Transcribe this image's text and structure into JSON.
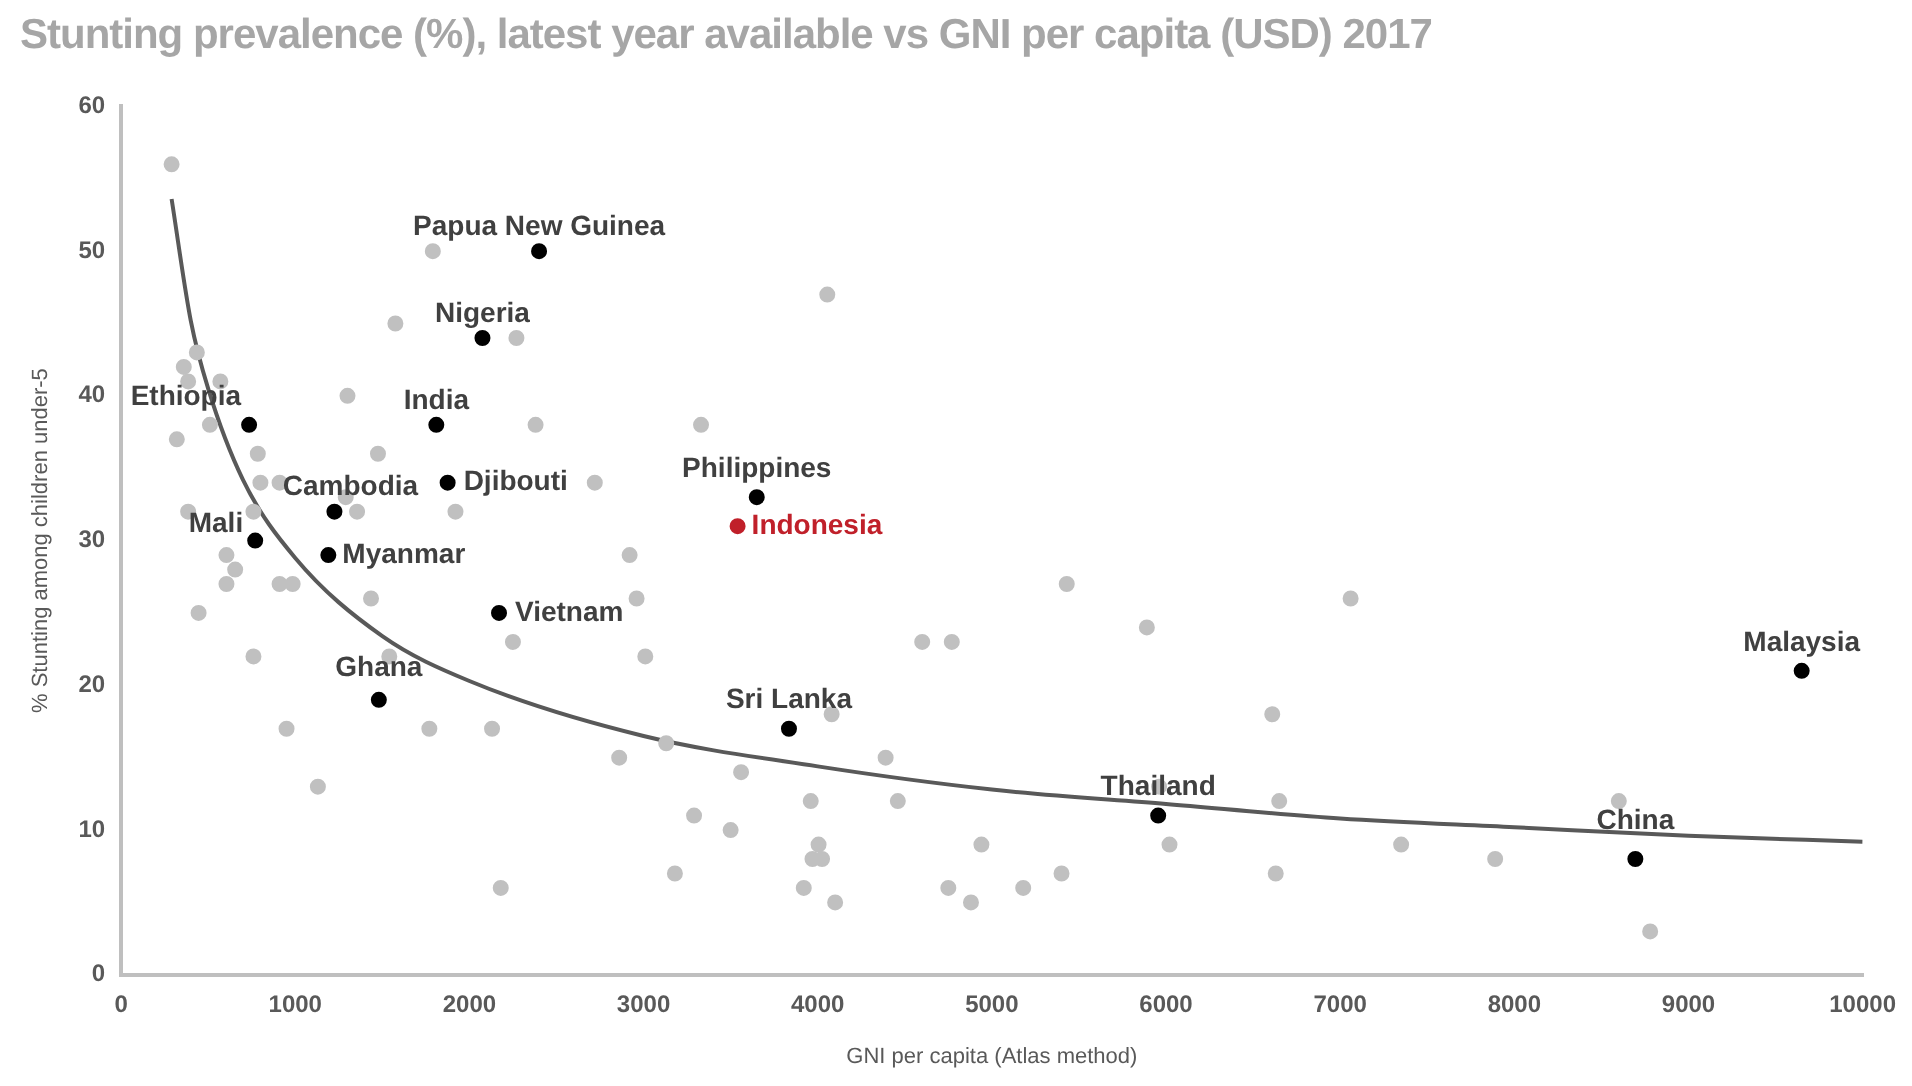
{
  "chart_data": {
    "type": "scatter",
    "title": "Stunting prevalence (%), latest year available vs GNI per capita (USD) 2017",
    "xlabel": "GNI per capita (Atlas method)",
    "ylabel": "% Stunting among children under-5",
    "xlim": [
      0,
      10000
    ],
    "xticks": [
      0,
      1000,
      2000,
      3000,
      4000,
      5000,
      6000,
      7000,
      8000,
      9000,
      10000
    ],
    "ylim": [
      0,
      60
    ],
    "yticks": [
      0,
      10,
      20,
      30,
      40,
      50,
      60
    ],
    "grid": false,
    "marker": "circle",
    "series": [
      {
        "type": "scatter",
        "color": "#c0c0c0",
        "x": [
          290,
          1790,
          1575,
          2270,
          435,
          360,
          385,
          570,
          1300,
          320,
          510,
          785,
          1475,
          2380,
          800,
          910,
          2720,
          385,
          760,
          1290,
          1355,
          1920,
          2920,
          605,
          655,
          605,
          910,
          985,
          445,
          1435,
          1540,
          760,
          2250,
          2960,
          3010,
          950,
          1770,
          2130,
          1130,
          2860,
          3130,
          2180,
          3180,
          4055,
          3330,
          5430,
          4600,
          4770,
          5890,
          4080,
          3560,
          4390,
          6610,
          3290,
          3500,
          3960,
          4460,
          4005,
          3970,
          4025,
          3920,
          4100,
          4750,
          4880,
          4940,
          5180,
          5400,
          6020,
          6650,
          6630,
          5960,
          7060,
          7350,
          7890,
          8600,
          8780
        ],
        "values": [
          56,
          50,
          45,
          44,
          43,
          42,
          41,
          41,
          40,
          37,
          38,
          36,
          36,
          38,
          34,
          34,
          34,
          32,
          32,
          33,
          32,
          32,
          29,
          29,
          28,
          27,
          27,
          27,
          25,
          26,
          22,
          22,
          23,
          26,
          22,
          17,
          17,
          17,
          13,
          15,
          16,
          6,
          7,
          47,
          38,
          27,
          23,
          23,
          24,
          18,
          14,
          15,
          18,
          11,
          10,
          12,
          12,
          9,
          8,
          8,
          6,
          5,
          6,
          5,
          9,
          6,
          7,
          9,
          12,
          7,
          13,
          26,
          9,
          8,
          12,
          3
        ]
      },
      {
        "type": "scatter",
        "color": "#000000",
        "x": [
          2400,
          2075,
          1810,
          735,
          1875,
          1225,
          770,
          1190,
          2170,
          1480,
          3650,
          3835,
          5955,
          8695,
          9650
        ],
        "values": [
          50,
          44,
          38,
          38,
          34,
          32,
          30,
          29,
          25,
          19,
          33,
          17,
          11,
          8,
          21
        ]
      },
      {
        "type": "scatter",
        "color": "#c0202a",
        "x": [
          3540
        ],
        "values": [
          31
        ]
      },
      {
        "type": "line",
        "color": "#595959",
        "marker": "none",
        "x": [
          290,
          400,
          500,
          700,
          1000,
          1500,
          2000,
          3000,
          4000,
          5000,
          6000,
          7000,
          8000,
          9000,
          10000
        ],
        "values": [
          53.6,
          45.2,
          40.5,
          34.2,
          28.8,
          23.4,
          20.3,
          16.5,
          14.4,
          12.8,
          11.8,
          10.8,
          10.2,
          9.6,
          9.2
        ]
      }
    ],
    "annotations": [
      {
        "text": "Papua New Guinea",
        "x": 2400,
        "y": 50
      },
      {
        "text": "Nigeria",
        "x": 2075,
        "y": 44
      },
      {
        "text": "India",
        "x": 1810,
        "y": 38
      },
      {
        "text": "Ethiopia",
        "x": 735,
        "y": 38
      },
      {
        "text": "Djibouti",
        "x": 1875,
        "y": 34
      },
      {
        "text": "Cambodia",
        "x": 1225,
        "y": 32
      },
      {
        "text": "Mali",
        "x": 770,
        "y": 30
      },
      {
        "text": "Myanmar",
        "x": 1190,
        "y": 29
      },
      {
        "text": "Vietnam",
        "x": 2170,
        "y": 25
      },
      {
        "text": "Ghana",
        "x": 1480,
        "y": 19
      },
      {
        "text": "Philippines",
        "x": 3650,
        "y": 33
      },
      {
        "text": "Indonesia",
        "x": 3540,
        "y": 31
      },
      {
        "text": "Sri Lanka",
        "x": 3835,
        "y": 17
      },
      {
        "text": "Thailand",
        "x": 5955,
        "y": 11
      },
      {
        "text": "China",
        "x": 8695,
        "y": 8
      },
      {
        "text": "Malaysia",
        "x": 9650,
        "y": 21
      }
    ]
  }
}
